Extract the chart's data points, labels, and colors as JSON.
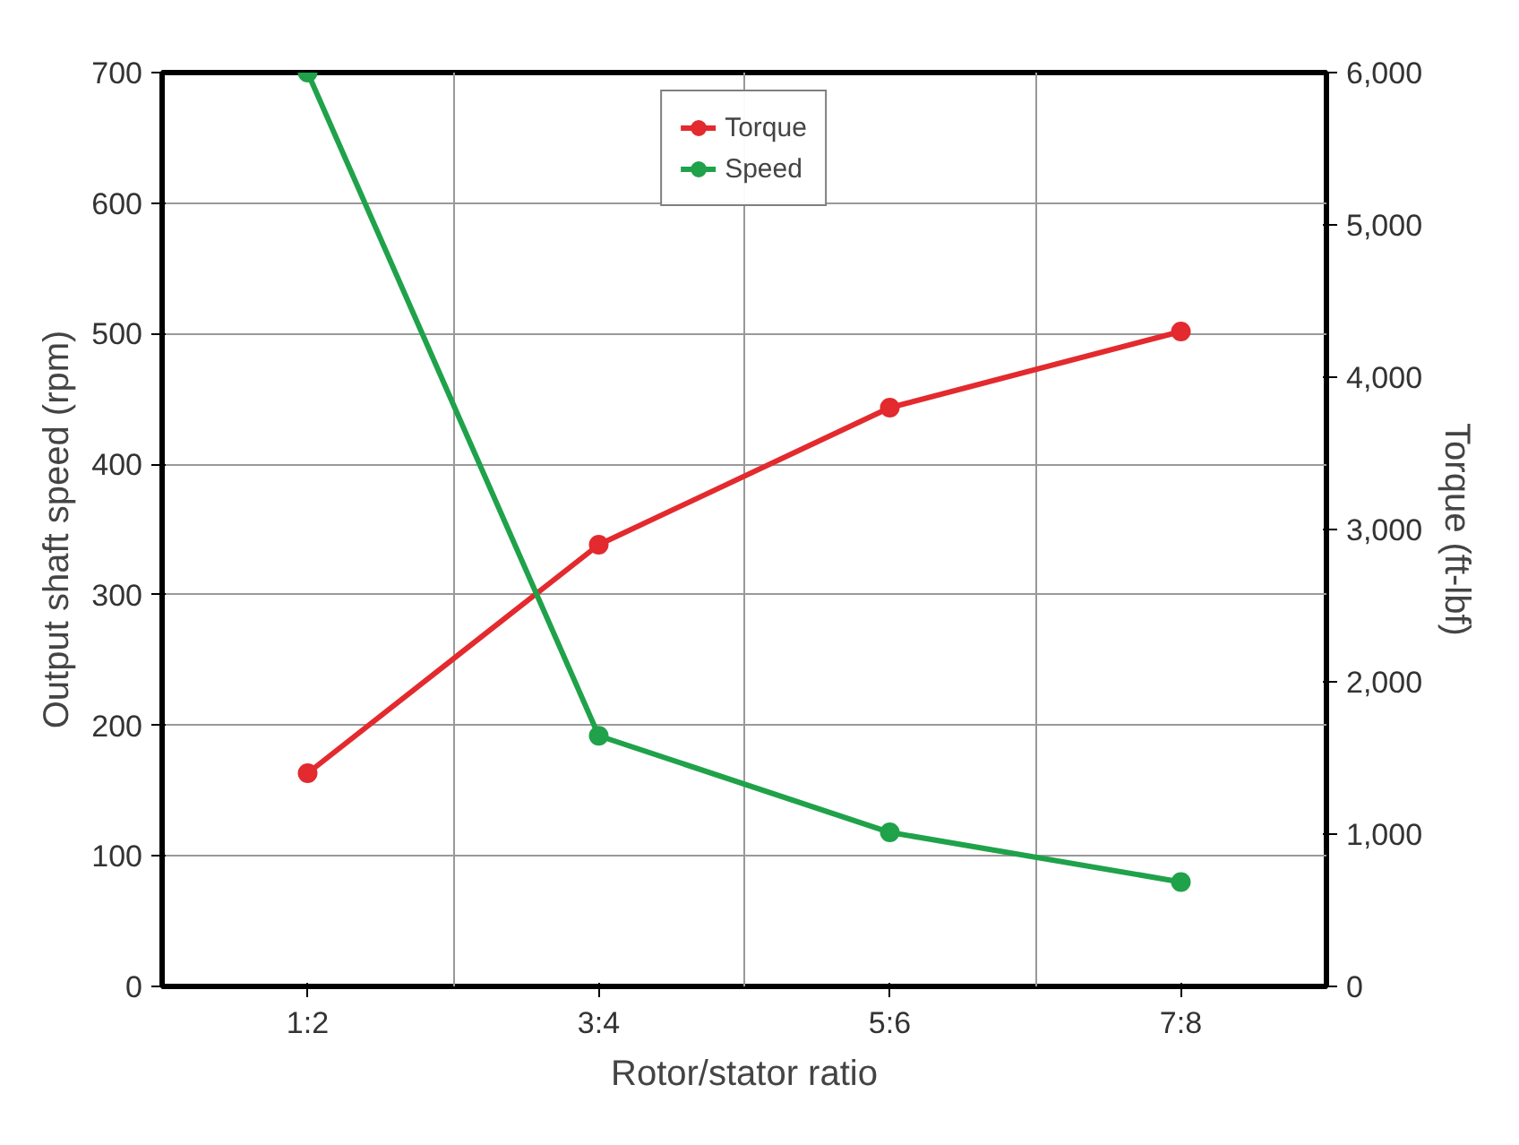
{
  "chart_data": {
    "type": "line",
    "xlabel": "Rotor/stator ratio",
    "ylabel": "Output shaft speed (rpm)",
    "y2label": "Torque (ft-lbf)",
    "categories": [
      "1:2",
      "3:4",
      "5:6",
      "7:8"
    ],
    "series": [
      {
        "name": "Torque",
        "color": "#e32a2e",
        "axis": "y2",
        "values": [
          1400,
          2900,
          3800,
          4300
        ]
      },
      {
        "name": "Speed",
        "color": "#1fa24a",
        "values": [
          700,
          192,
          118,
          80
        ]
      }
    ],
    "ylim": [
      0,
      700
    ],
    "yticks": [
      0,
      100,
      200,
      300,
      400,
      500,
      600,
      700
    ],
    "y2lim": [
      0,
      6000
    ],
    "y2ticks": [
      {
        "value": 0,
        "label": "0"
      },
      {
        "value": 1000,
        "label": "1,000"
      },
      {
        "value": 2000,
        "label": "2,000"
      },
      {
        "value": 3000,
        "label": "3,000"
      },
      {
        "value": 4000,
        "label": "4,000"
      },
      {
        "value": 5000,
        "label": "5,000"
      },
      {
        "value": 6000,
        "label": "6,000"
      }
    ],
    "grid": true,
    "legend": "top",
    "marker": "circle",
    "line_style": "solid"
  }
}
